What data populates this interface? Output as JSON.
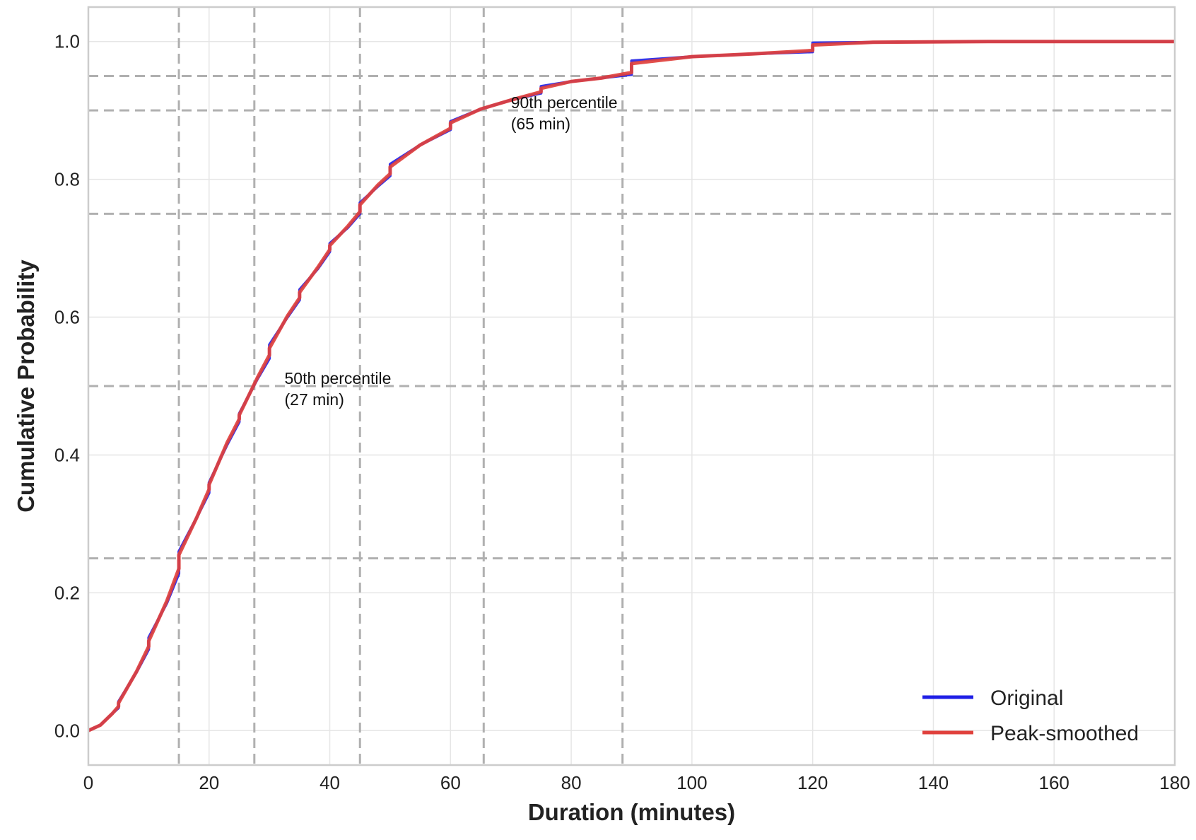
{
  "chart_data": {
    "type": "line",
    "title": "",
    "xlabel": "Duration (minutes)",
    "ylabel": "Cumulative Probability",
    "xlim": [
      0,
      180
    ],
    "ylim": [
      -0.05,
      1.05
    ],
    "xticks": [
      "0",
      "20",
      "40",
      "60",
      "80",
      "100",
      "120",
      "140",
      "160",
      "180"
    ],
    "yticks": [
      "0.0",
      "0.2",
      "0.4",
      "0.6",
      "0.8",
      "1.0"
    ],
    "grid": true,
    "legend_position": "lower-right",
    "colors": {
      "original": "#1f1fe6",
      "smoothed": "#e0403c",
      "reference": "#b0b0b0"
    },
    "reference_lines": {
      "vertical": [
        15,
        27.5,
        45,
        65.5,
        88.5
      ],
      "horizontal": [
        0.25,
        0.5,
        0.75,
        0.9,
        0.95
      ]
    },
    "annotations": [
      {
        "x": 32.5,
        "y": 0.495,
        "line1": "50th percentile",
        "line2": "(27 min)"
      },
      {
        "x": 70,
        "y": 0.895,
        "line1": "90th percentile",
        "line2": "(65 min)"
      }
    ],
    "series": [
      {
        "name": "Original",
        "x": [
          0,
          2,
          4,
          5,
          5,
          8,
          10,
          10,
          13,
          15,
          15,
          18,
          20,
          20,
          23,
          25,
          25,
          28,
          30,
          30,
          33,
          35,
          35,
          38,
          40,
          40,
          43,
          45,
          45,
          48,
          50,
          50,
          55,
          60,
          60,
          65,
          70,
          75,
          75,
          80,
          85,
          90,
          90,
          100,
          110,
          120,
          120,
          130,
          150,
          180
        ],
        "y": [
          0.0,
          0.008,
          0.025,
          0.033,
          0.042,
          0.085,
          0.118,
          0.135,
          0.185,
          0.228,
          0.26,
          0.31,
          0.345,
          0.36,
          0.415,
          0.448,
          0.46,
          0.51,
          0.54,
          0.56,
          0.6,
          0.625,
          0.64,
          0.67,
          0.695,
          0.707,
          0.73,
          0.75,
          0.766,
          0.79,
          0.805,
          0.822,
          0.85,
          0.872,
          0.884,
          0.902,
          0.915,
          0.925,
          0.935,
          0.942,
          0.947,
          0.952,
          0.972,
          0.978,
          0.982,
          0.985,
          0.998,
          0.999,
          1.0,
          1.0
        ]
      },
      {
        "name": "Peak-smoothed",
        "x": [
          0,
          2,
          4,
          5,
          5,
          8,
          10,
          10,
          13,
          15,
          15,
          18,
          20,
          20,
          23,
          25,
          25,
          28,
          30,
          30,
          33,
          35,
          35,
          38,
          40,
          40,
          43,
          45,
          45,
          48,
          50,
          50,
          55,
          60,
          60,
          65,
          70,
          75,
          75,
          80,
          85,
          90,
          90,
          100,
          110,
          120,
          120,
          130,
          150,
          180
        ],
        "y": [
          0.0,
          0.008,
          0.025,
          0.035,
          0.04,
          0.086,
          0.122,
          0.13,
          0.188,
          0.235,
          0.255,
          0.31,
          0.35,
          0.357,
          0.418,
          0.452,
          0.458,
          0.512,
          0.545,
          0.555,
          0.602,
          0.628,
          0.636,
          0.672,
          0.698,
          0.704,
          0.732,
          0.753,
          0.763,
          0.792,
          0.808,
          0.818,
          0.85,
          0.874,
          0.882,
          0.902,
          0.915,
          0.927,
          0.932,
          0.942,
          0.947,
          0.955,
          0.968,
          0.978,
          0.982,
          0.987,
          0.995,
          0.999,
          1.0,
          1.0
        ]
      }
    ]
  }
}
